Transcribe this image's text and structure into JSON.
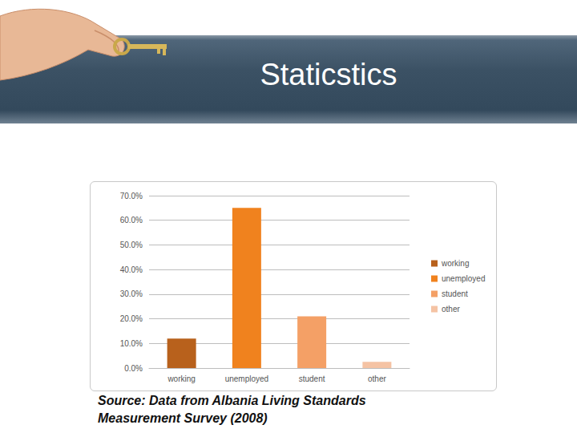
{
  "chart_data": {
    "type": "bar",
    "title": "Staticstics",
    "source": "Source: Data from Albania Living Standards Measurement Survey (2008)",
    "categories": [
      "working",
      "unemployed",
      "student",
      "other"
    ],
    "values": [
      12,
      65,
      21,
      2.5
    ],
    "colors": [
      "#b8611c",
      "#f0821e",
      "#f4a066",
      "#f5c3a4"
    ],
    "ylim": [
      0,
      70
    ],
    "yticks": [
      {
        "value": 0,
        "label": "0.0%"
      },
      {
        "value": 10,
        "label": "10.0%"
      },
      {
        "value": 20,
        "label": "20.0%"
      },
      {
        "value": 30,
        "label": "30.0%"
      },
      {
        "value": 40,
        "label": "40.0%"
      },
      {
        "value": 50,
        "label": "50.0%"
      },
      {
        "value": 60,
        "label": "60.0%"
      },
      {
        "value": 70,
        "label": "70.0%"
      }
    ],
    "grid": true,
    "legend": "right"
  }
}
